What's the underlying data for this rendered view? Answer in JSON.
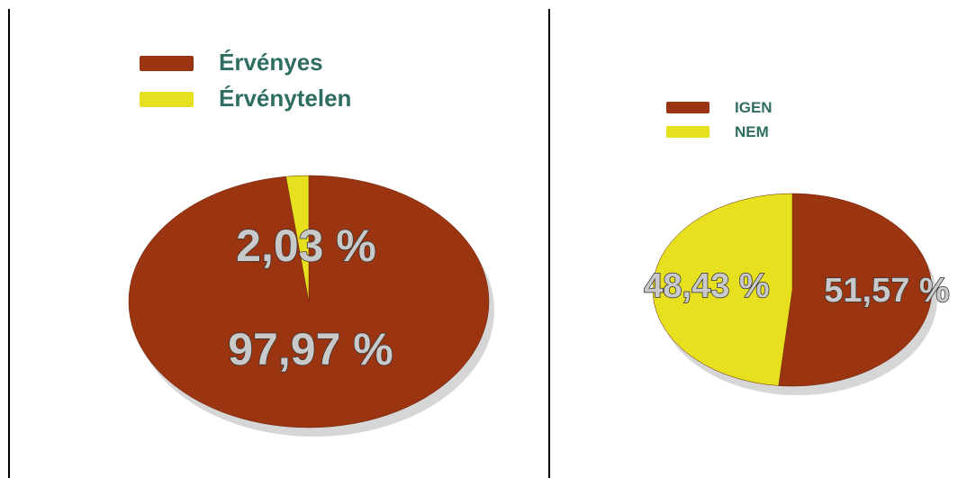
{
  "chart_data": [
    {
      "type": "pie",
      "categories": [
        "Érvényes",
        "Érvénytelen"
      ],
      "values": [
        97.97,
        2.03
      ],
      "value_labels": [
        "97,97 %",
        "2,03 %"
      ],
      "colors": [
        "#9b3411",
        "#e6e01e"
      ],
      "legend": "top"
    },
    {
      "type": "pie",
      "categories": [
        "IGEN",
        "NEM"
      ],
      "values": [
        51.57,
        48.43
      ],
      "value_labels": [
        "51,57 %",
        "48,43 %"
      ],
      "colors": [
        "#9b3411",
        "#e6e01e"
      ],
      "legend": "top"
    }
  ]
}
